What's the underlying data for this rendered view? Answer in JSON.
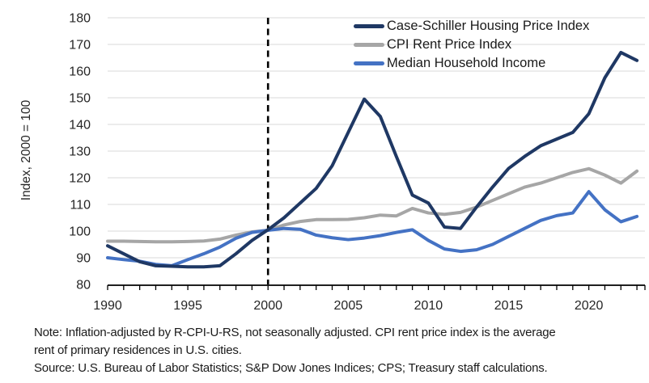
{
  "chart_data": {
    "type": "line",
    "title": "",
    "xlabel": "",
    "ylabel": "Index, 2000 = 100",
    "xlim": [
      1990,
      2023.5
    ],
    "ylim": [
      80,
      180
    ],
    "yticks": [
      80,
      90,
      100,
      110,
      120,
      130,
      140,
      150,
      160,
      170,
      180
    ],
    "xticks_labeled": [
      1990,
      1995,
      2000,
      2005,
      2010,
      2015,
      2020
    ],
    "xtick_minor_every": 1,
    "grid": true,
    "legend_position": "top-right-inside",
    "reference_line_x": 2000,
    "x": [
      1990,
      1991,
      1992,
      1993,
      1994,
      1995,
      1996,
      1997,
      1998,
      1999,
      2000,
      2001,
      2002,
      2003,
      2004,
      2005,
      2006,
      2007,
      2008,
      2009,
      2010,
      2011,
      2012,
      2013,
      2014,
      2015,
      2016,
      2017,
      2018,
      2019,
      2020,
      2021,
      2022,
      2023
    ],
    "series": [
      {
        "name": "Case-Schiller Housing Price Index",
        "color": "#1F3864",
        "values": [
          94.5,
          91.5,
          88.5,
          87.0,
          86.8,
          86.6,
          86.6,
          87.0,
          91.5,
          96.5,
          100.5,
          105.0,
          110.5,
          116.0,
          124.5,
          137.0,
          149.5,
          143.0,
          128.0,
          113.5,
          110.5,
          101.5,
          101.0,
          109.0,
          116.5,
          123.5,
          128.0,
          132.0,
          134.5,
          137.0,
          144.0,
          157.5,
          167.0,
          164.0
        ]
      },
      {
        "name": "CPI Rent Price Index",
        "color": "#A6A6A6",
        "values": [
          96.2,
          96.2,
          96.1,
          96.0,
          96.0,
          96.1,
          96.3,
          97.0,
          98.5,
          99.7,
          100.3,
          102.3,
          103.6,
          104.3,
          104.3,
          104.4,
          105.0,
          106.0,
          105.7,
          108.5,
          106.8,
          106.3,
          107.0,
          109.0,
          111.5,
          114.0,
          116.5,
          118.0,
          120.0,
          122.0,
          123.4,
          121.0,
          118.0,
          122.5
        ]
      },
      {
        "name": "Median Household Income",
        "color": "#4472C4",
        "values": [
          90.0,
          89.3,
          88.7,
          87.5,
          87.0,
          89.3,
          91.5,
          94.0,
          97.3,
          99.5,
          100.3,
          101.0,
          100.7,
          98.5,
          97.5,
          96.8,
          97.4,
          98.3,
          99.5,
          100.5,
          96.5,
          93.3,
          92.4,
          93.0,
          95.0,
          98.0,
          101.0,
          104.0,
          105.8,
          106.8,
          114.8,
          108.0,
          103.5,
          105.5
        ]
      }
    ]
  },
  "colors": {
    "grid": "#D9D9D9",
    "axis": "#000000",
    "reference_line": "#000000",
    "tick_text": "#262626",
    "background": "#FFFFFF"
  },
  "footer": {
    "note_line1": "Note: Inflation-adjusted by R-CPI-U-RS, not seasonally adjusted. CPI rent price index is the average",
    "note_line2": "rent of primary residences in U.S. cities.",
    "source": "Source: U.S. Bureau of Labor Statistics; S&P Dow Jones Indices; CPS; Treasury staff calculations."
  }
}
